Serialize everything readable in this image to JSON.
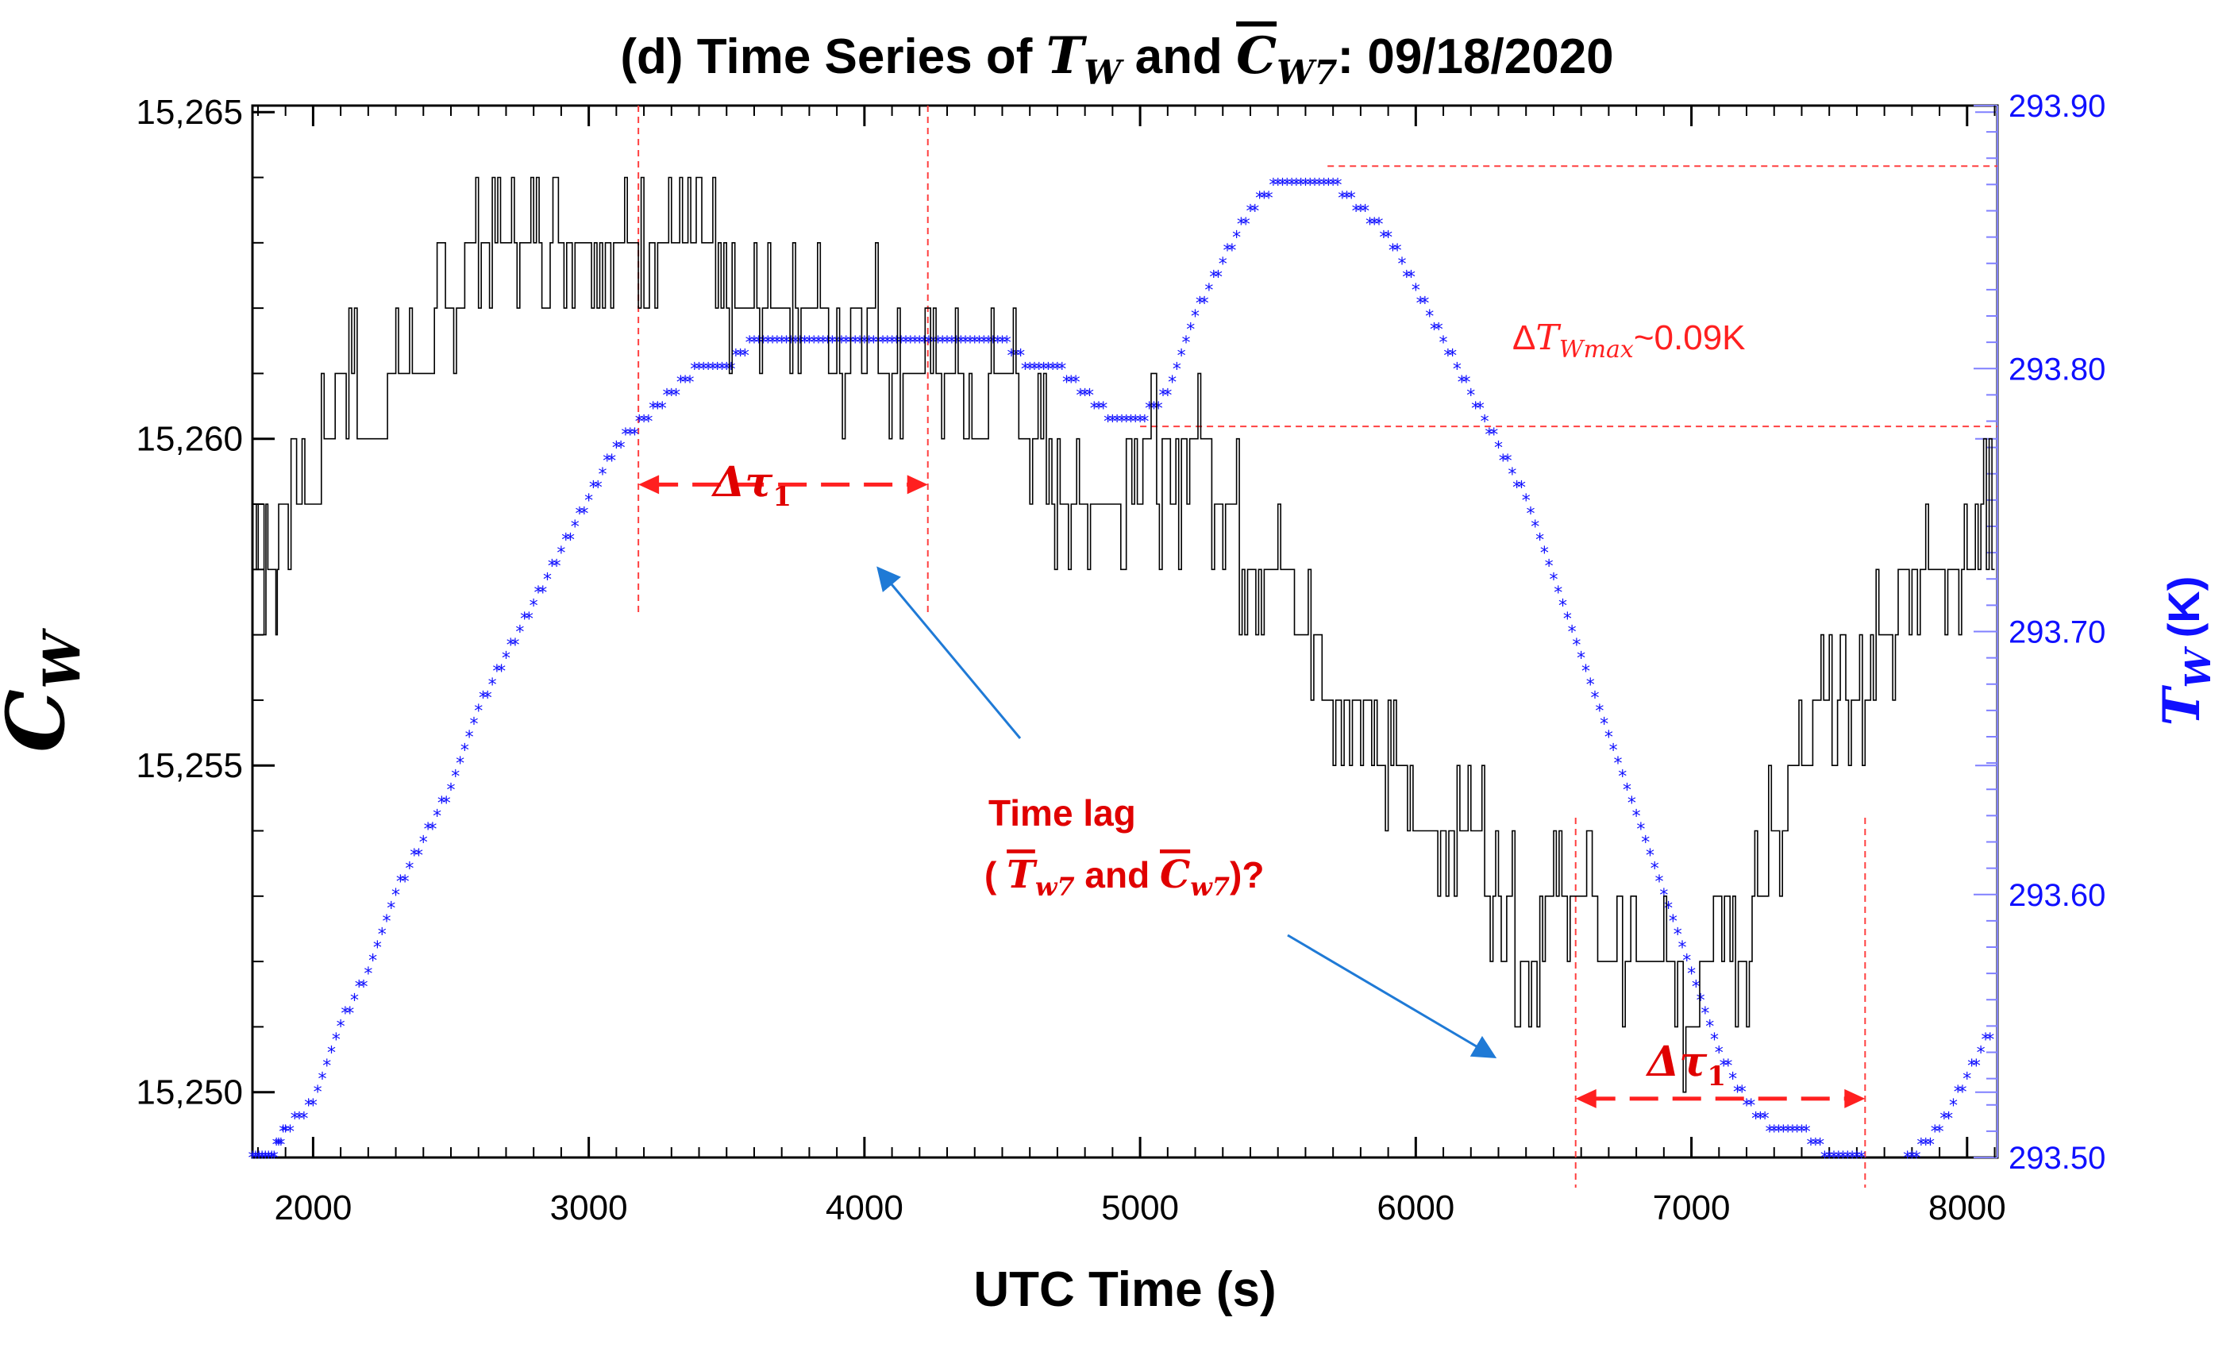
{
  "chart_data": {
    "type": "line",
    "title": {
      "prefix": "(d) Time Series of ",
      "t_symbol": "T",
      "t_sub": "W",
      "middle": " and ",
      "c_symbol": "C",
      "c_sub": "W7",
      "suffix": ": 09/18/2020"
    },
    "xlabel": "UTC Time (s)",
    "ylabel_left": {
      "symbol": "C",
      "sub": "W"
    },
    "ylabel_right": {
      "symbol": "T",
      "sub": "W",
      "unit": "(K)"
    },
    "xlim": [
      1780,
      8110
    ],
    "ylim_left": [
      15249,
      15265.1
    ],
    "ylim_right": [
      293.5,
      293.9
    ],
    "x_ticks": [
      2000,
      3000,
      4000,
      5000,
      6000,
      7000,
      8000
    ],
    "x_tick_labels": [
      "2000",
      "3000",
      "4000",
      "5000",
      "6000",
      "7000",
      "8000"
    ],
    "left_ticks": [
      15250,
      15255,
      15260,
      15265
    ],
    "left_tick_labels": [
      "15,250",
      "15,255",
      "15,260",
      "15,265"
    ],
    "right_ticks": [
      293.5,
      293.6,
      293.7,
      293.8,
      293.9
    ],
    "right_tick_labels": [
      "293.50",
      "293.60",
      "293.70",
      "293.80",
      "293.90"
    ],
    "series": [
      {
        "name": "C_W",
        "axis": "left",
        "style": "thin black step line",
        "color": "#000000",
        "x": [
          1780,
          1850,
          1900,
          2000,
          2100,
          2200,
          2300,
          2400,
          2500,
          2600,
          2700,
          2800,
          2900,
          3000,
          3100,
          3200,
          3300,
          3400,
          3500,
          3600,
          3700,
          3800,
          3900,
          4000,
          4100,
          4200,
          4300,
          4400,
          4500,
          4600,
          4700,
          4800,
          4900,
          5000,
          5100,
          5200,
          5300,
          5400,
          5500,
          5600,
          5700,
          5800,
          5900,
          6000,
          6100,
          6200,
          6300,
          6400,
          6500,
          6600,
          6700,
          6800,
          6900,
          7000,
          7100,
          7200,
          7300,
          7400,
          7500,
          7600,
          7700,
          7800,
          7900,
          8000,
          8100
        ],
        "values": [
          15259,
          15258,
          15259,
          15259,
          15261,
          15260,
          15261,
          15261,
          15262,
          15263,
          15263,
          15263,
          15263,
          15263,
          15263,
          15263,
          15263,
          15263,
          15262,
          15262,
          15262,
          15262,
          15261,
          15262,
          15261,
          15261,
          15261,
          15260,
          15261,
          15260,
          15259,
          15259,
          15259,
          15260,
          15259,
          15260,
          15259,
          15258,
          15258,
          15257,
          15256,
          15256,
          15255,
          15254,
          15254,
          15254,
          15253,
          15252,
          15253,
          15253,
          15252,
          15252,
          15252,
          15251,
          15253,
          15252,
          15254,
          15255,
          15256,
          15256,
          15257,
          15258,
          15258,
          15258,
          15259
        ]
      },
      {
        "name": "T_W",
        "axis": "right",
        "style": "blue asterisk markers",
        "color": "#1010ff",
        "x": [
          1780,
          1850,
          1900,
          2000,
          2100,
          2200,
          2300,
          2400,
          2500,
          2600,
          2700,
          2800,
          2900,
          3000,
          3100,
          3200,
          3300,
          3400,
          3500,
          3600,
          3700,
          3800,
          3900,
          4000,
          4100,
          4200,
          4300,
          4400,
          4500,
          4600,
          4700,
          4800,
          4900,
          5000,
          5100,
          5200,
          5300,
          5400,
          5500,
          5600,
          5700,
          5800,
          5900,
          6000,
          6100,
          6200,
          6300,
          6400,
          6500,
          6600,
          6700,
          6800,
          6900,
          7000,
          7100,
          7200,
          7300,
          7400,
          7500,
          7600,
          7700,
          7800,
          7900,
          8000,
          8100
        ],
        "values": [
          293.5,
          293.5,
          293.51,
          293.52,
          293.55,
          293.57,
          293.6,
          293.62,
          293.64,
          293.67,
          293.69,
          293.71,
          293.73,
          293.75,
          293.77,
          293.78,
          293.79,
          293.8,
          293.8,
          293.81,
          293.81,
          293.81,
          293.81,
          293.81,
          293.81,
          293.81,
          293.81,
          293.81,
          293.81,
          293.8,
          293.8,
          293.79,
          293.78,
          293.78,
          293.79,
          293.82,
          293.84,
          293.86,
          293.87,
          293.87,
          293.87,
          293.86,
          293.85,
          293.83,
          293.81,
          293.79,
          293.77,
          293.75,
          293.72,
          293.69,
          293.66,
          293.63,
          293.6,
          293.57,
          293.54,
          293.52,
          293.51,
          293.51,
          293.5,
          293.5,
          293.49,
          293.5,
          293.51,
          293.53,
          293.55
        ]
      }
    ],
    "annotations": {
      "delta_t_max": {
        "delta": "Δ",
        "symbol": "T",
        "sub": "Wmax",
        "value": "~0.09K"
      },
      "time_lag": {
        "line1": "Time lag",
        "open": "( ",
        "t_symbol": "T",
        "t_sub": "w7",
        "and": " and ",
        "c_symbol": "C",
        "c_sub": "w7",
        "close": ")?"
      },
      "tau_label_1": {
        "symbol": "Δτ",
        "sub": "1"
      },
      "tau_label_2": {
        "symbol": "Δτ",
        "sub": "1"
      },
      "vlines_x": [
        3180,
        4230,
        6580,
        7630
      ],
      "hlines_right_y": [
        293.877,
        293.778
      ],
      "arrows": [
        {
          "x_from": 3180,
          "x_to": 4230,
          "y_left": 15259.3
        },
        {
          "x_from": 6580,
          "x_to": 7630,
          "y_left": 15249.9
        }
      ]
    },
    "colors": {
      "left_series": "#000000",
      "right_series": "#1010ff",
      "annotation": "#ff2020",
      "pointer_arrow": "#1f7ad6"
    }
  }
}
